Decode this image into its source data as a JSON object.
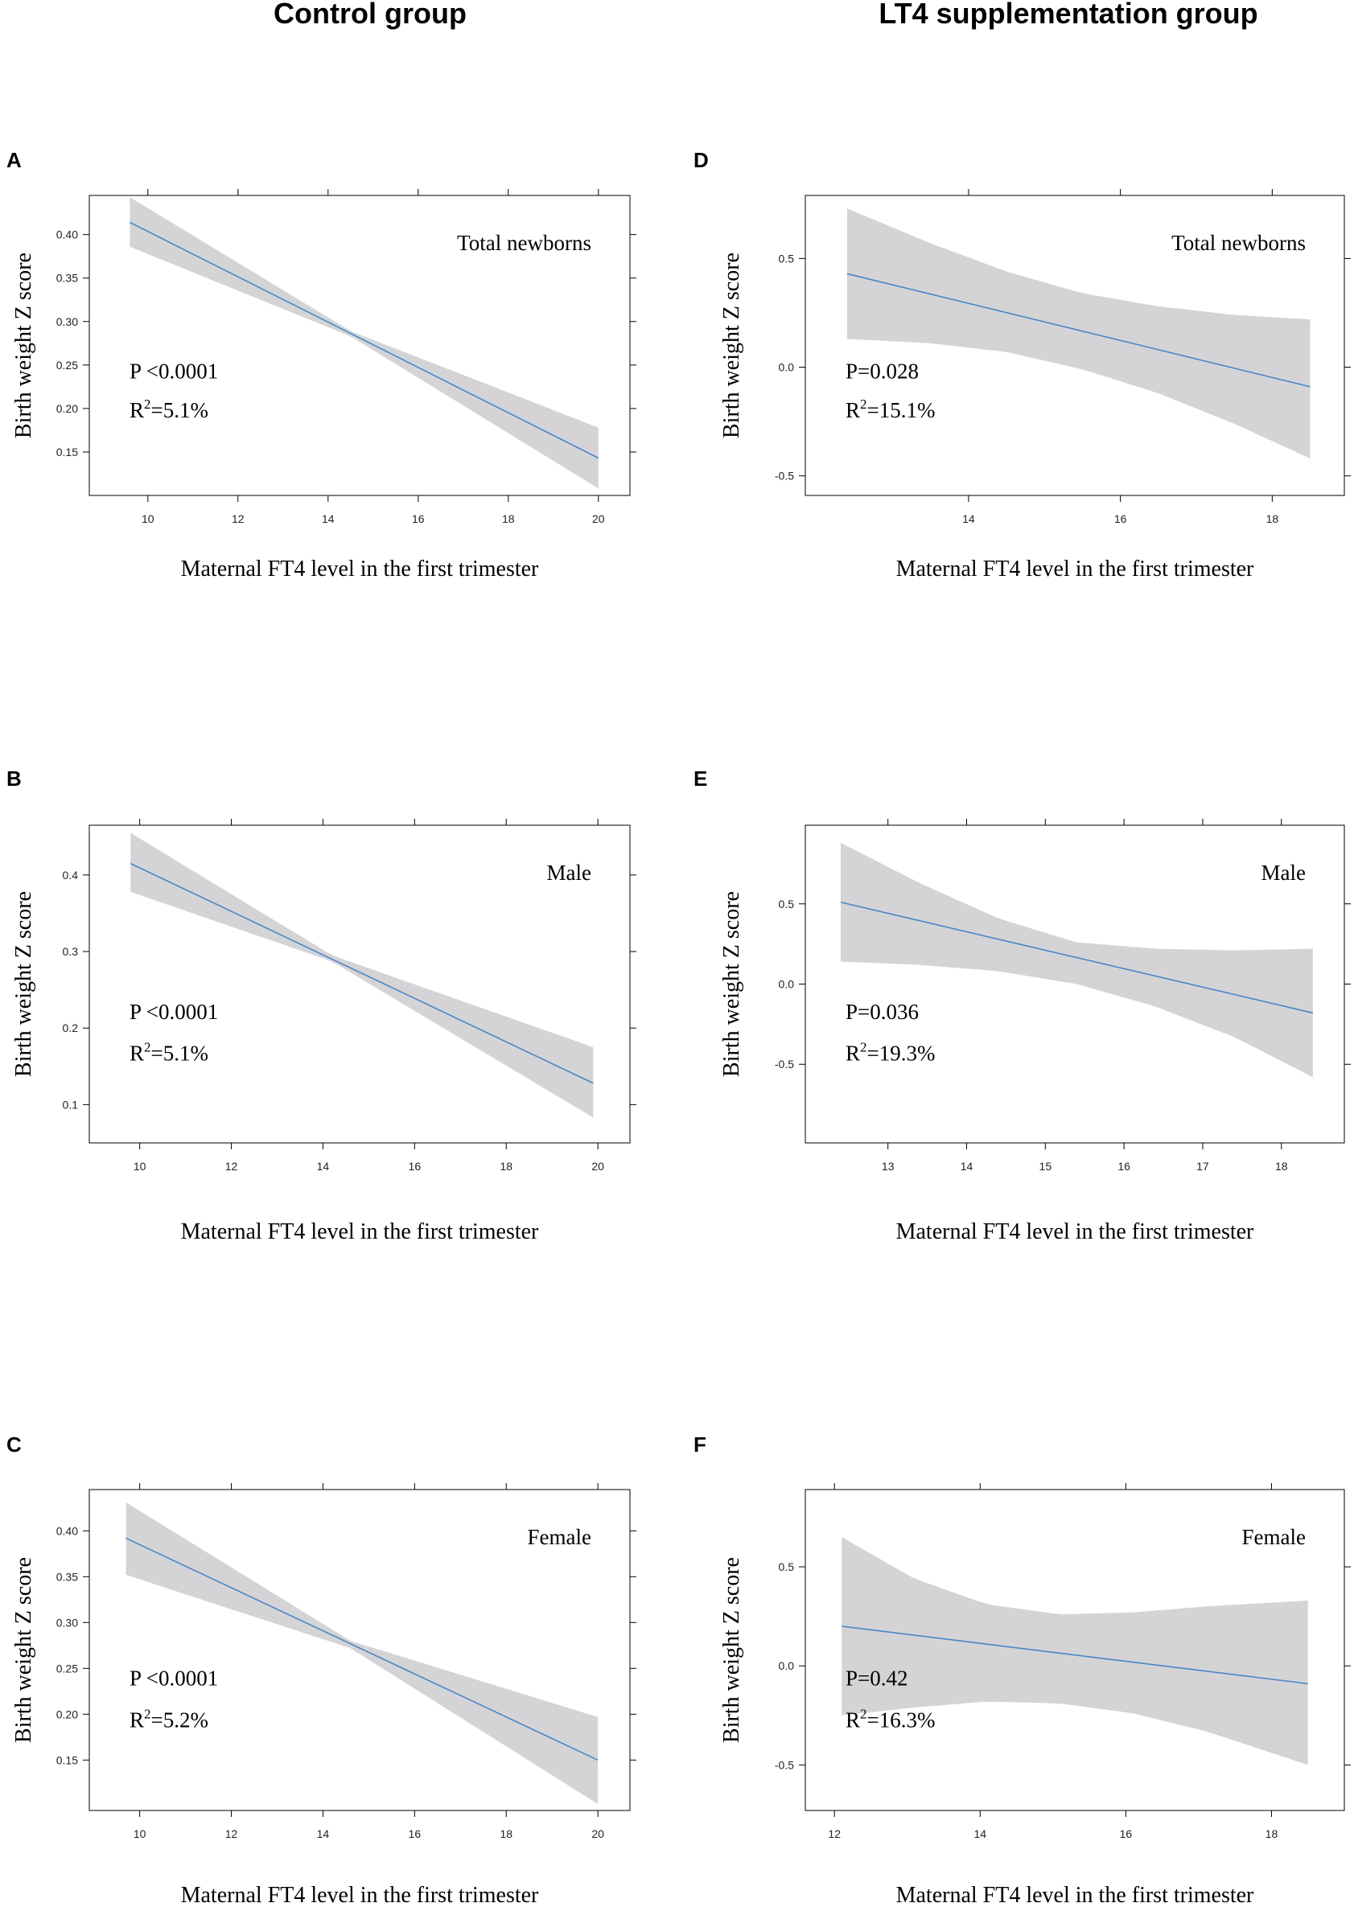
{
  "headers": {
    "left": "Control group",
    "right": "LT4 supplementation group"
  },
  "colors": {
    "band": "#d4d4d6",
    "line": "#4a86c8",
    "axis": "#000000"
  },
  "chart_data": [
    {
      "panel": "A",
      "type": "line",
      "column": "left",
      "title": "Total newborns",
      "xlabel": "Maternal FT4 level in the first trimester",
      "ylabel": "Birth weight Z score",
      "p_text": "P <0.0001",
      "r2_text": "=5.1%",
      "xlim": [
        8.7,
        20.7
      ],
      "ylim": [
        0.1,
        0.445
      ],
      "xticks": [
        10,
        12,
        14,
        16,
        18,
        20
      ],
      "yticks": [
        0.15,
        0.2,
        0.25,
        0.3,
        0.35,
        0.4
      ],
      "ytick_labels": [
        "0.15",
        "0.20",
        "0.25",
        "0.30",
        "0.35",
        "0.40"
      ],
      "line": {
        "x": [
          9.6,
          20
        ],
        "y": [
          0.414,
          0.143
        ]
      },
      "band": {
        "x": [
          9.6,
          14.5,
          20
        ],
        "lower": [
          0.386,
          0.283,
          0.108
        ],
        "upper": [
          0.443,
          0.289,
          0.178
        ]
      }
    },
    {
      "panel": "B",
      "type": "line",
      "column": "left",
      "title": "Male",
      "xlabel": "Maternal FT4 level in the first trimester",
      "ylabel": "Birth weight Z score",
      "p_text": "P <0.0001",
      "r2_text": "=5.1%",
      "xlim": [
        8.9,
        20.7
      ],
      "ylim": [
        0.05,
        0.465
      ],
      "xticks": [
        10,
        12,
        14,
        16,
        18,
        20
      ],
      "yticks": [
        0.1,
        0.2,
        0.3,
        0.4
      ],
      "ytick_labels": [
        "0.1",
        "0.2",
        "0.3",
        "0.4"
      ],
      "line": {
        "x": [
          9.8,
          19.9
        ],
        "y": [
          0.415,
          0.128
        ]
      },
      "band": {
        "x": [
          9.8,
          14.2,
          19.9
        ],
        "lower": [
          0.378,
          0.287,
          0.083
        ],
        "upper": [
          0.455,
          0.295,
          0.175
        ]
      }
    },
    {
      "panel": "C",
      "type": "line",
      "column": "left",
      "title": "Female",
      "xlabel": "Maternal FT4 level in the first trimester",
      "ylabel": "Birth weight Z score",
      "p_text": "P <0.0001",
      "r2_text": "=5.2%",
      "xlim": [
        8.9,
        20.7
      ],
      "ylim": [
        0.095,
        0.445
      ],
      "xticks": [
        10,
        12,
        14,
        16,
        18,
        20
      ],
      "yticks": [
        0.15,
        0.2,
        0.25,
        0.3,
        0.35,
        0.4
      ],
      "ytick_labels": [
        "0.15",
        "0.20",
        "0.25",
        "0.30",
        "0.35",
        "0.40"
      ],
      "line": {
        "x": [
          9.7,
          20
        ],
        "y": [
          0.392,
          0.15
        ]
      },
      "band": {
        "x": [
          9.7,
          14.6,
          20
        ],
        "lower": [
          0.352,
          0.272,
          0.102
        ],
        "upper": [
          0.431,
          0.28,
          0.197
        ]
      }
    },
    {
      "panel": "D",
      "type": "line",
      "column": "right",
      "title": "Total newborns",
      "xlabel": "Maternal FT4 level in the first trimester",
      "ylabel": "Birth weight Z score",
      "p_text": "P=0.028",
      "r2_text": "=15.1%",
      "xlim": [
        11.85,
        18.95
      ],
      "ylim": [
        -0.59,
        0.79
      ],
      "xticks": [
        14,
        16,
        18
      ],
      "yticks": [
        -0.5,
        0.0,
        0.5
      ],
      "ytick_labels": [
        "-0.5",
        "0.0",
        "0.5"
      ],
      "line": {
        "x": [
          12.4,
          18.5
        ],
        "y": [
          0.43,
          -0.09
        ]
      },
      "band": {
        "x": [
          12.4,
          13.5,
          14.5,
          15.5,
          16.5,
          17.5,
          18.5
        ],
        "lower": [
          0.13,
          0.11,
          0.07,
          -0.01,
          -0.12,
          -0.26,
          -0.42
        ],
        "upper": [
          0.73,
          0.57,
          0.44,
          0.34,
          0.28,
          0.24,
          0.22
        ]
      }
    },
    {
      "panel": "E",
      "type": "line",
      "column": "right",
      "title": "Male",
      "xlabel": "Maternal FT4 level in the first trimester",
      "ylabel": "Birth weight Z score",
      "p_text": "P=0.036",
      "r2_text": "=19.3%",
      "xlim": [
        11.95,
        18.8
      ],
      "ylim": [
        -0.99,
        0.99
      ],
      "xticks": [
        13,
        14,
        15,
        16,
        17,
        18
      ],
      "yticks": [
        -0.5,
        0.0,
        0.5
      ],
      "ytick_labels": [
        "-0.5",
        "0.0",
        "0.5"
      ],
      "line": {
        "x": [
          12.4,
          18.4
        ],
        "y": [
          0.51,
          -0.18
        ]
      },
      "band": {
        "x": [
          12.4,
          13.4,
          14.4,
          15.4,
          16.4,
          17.4,
          18.4
        ],
        "lower": [
          0.14,
          0.12,
          0.08,
          0.0,
          -0.14,
          -0.33,
          -0.58
        ],
        "upper": [
          0.88,
          0.63,
          0.41,
          0.26,
          0.22,
          0.21,
          0.22
        ]
      }
    },
    {
      "panel": "F",
      "type": "line",
      "column": "right",
      "title": "Female",
      "xlabel": "Maternal FT4 level in the first trimester",
      "ylabel": "Birth weight Z score",
      "p_text": "P=0.42",
      "r2_text": "=16.3%",
      "xlim": [
        11.6,
        19.0
      ],
      "ylim": [
        -0.73,
        0.89
      ],
      "xticks": [
        12,
        14,
        16,
        18
      ],
      "yticks": [
        -0.5,
        0.0,
        0.5
      ],
      "ytick_labels": [
        "-0.5",
        "0.0",
        "0.5"
      ],
      "line": {
        "x": [
          12.1,
          18.5
        ],
        "y": [
          0.2,
          -0.09
        ]
      },
      "band": {
        "x": [
          12.1,
          13.1,
          14.1,
          15.1,
          16.1,
          17.1,
          18.5
        ],
        "lower": [
          -0.25,
          -0.21,
          -0.18,
          -0.19,
          -0.24,
          -0.33,
          -0.5
        ],
        "upper": [
          0.65,
          0.44,
          0.31,
          0.26,
          0.27,
          0.3,
          0.33
        ]
      }
    }
  ]
}
